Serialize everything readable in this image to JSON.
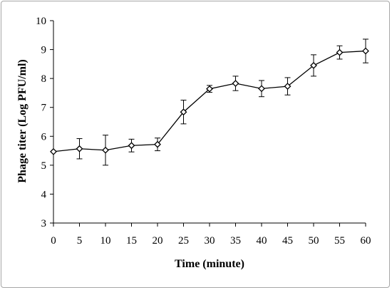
{
  "chart_data": {
    "type": "line",
    "title": "",
    "xlabel": "Time (minute)",
    "ylabel": "Phage titer (Log PFU/ml)",
    "xlim": [
      0,
      60
    ],
    "ylim": [
      3,
      10
    ],
    "x_ticks": [
      0,
      5,
      10,
      15,
      20,
      25,
      30,
      35,
      40,
      45,
      50,
      55,
      60
    ],
    "x_tick_labels": [
      "0",
      "5",
      "10",
      "15",
      "20",
      "25",
      "30",
      "35",
      "40",
      "45",
      "50",
      "55",
      "60"
    ],
    "y_ticks": [
      3,
      4,
      5,
      6,
      7,
      8,
      9,
      10
    ],
    "y_tick_labels": [
      "3",
      "4",
      "5",
      "6",
      "7",
      "8",
      "9",
      "10"
    ],
    "grid": false,
    "legend": "none",
    "marker": "diamond",
    "series": [
      {
        "x": [
          0,
          5,
          10,
          15,
          20,
          25,
          30,
          35,
          40,
          45,
          50,
          55,
          60
        ],
        "y": [
          5.47,
          5.57,
          5.52,
          5.68,
          5.72,
          6.84,
          7.64,
          7.83,
          7.65,
          7.73,
          8.45,
          8.9,
          8.95
        ],
        "error": [
          0.0,
          0.35,
          0.52,
          0.22,
          0.22,
          0.41,
          0.12,
          0.25,
          0.28,
          0.3,
          0.37,
          0.23,
          0.41
        ]
      }
    ],
    "colors": {
      "line": "#000000",
      "marker_fill": "#ffffff",
      "axis": "#000000",
      "frame": "#a6a6a6"
    }
  }
}
